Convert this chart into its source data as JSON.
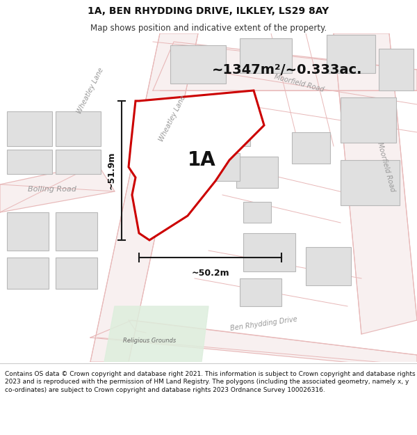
{
  "title": "1A, BEN RHYDDING DRIVE, ILKLEY, LS29 8AY",
  "subtitle": "Map shows position and indicative extent of the property.",
  "area_label": "~1347m²/~0.333ac.",
  "property_label": "1A",
  "dim_horiz": "~50.2m",
  "dim_vert": "~51.9m",
  "footer": "Contains OS data © Crown copyright and database right 2021. This information is subject to Crown copyright and database rights 2023 and is reproduced with the permission of HM Land Registry. The polygons (including the associated geometry, namely x, y co-ordinates) are subject to Crown copyright and database rights 2023 Ordnance Survey 100026316.",
  "bg_color": "#ffffff",
  "map_bg": "#ffffff",
  "road_fill": "#f5f0f0",
  "road_line": "#e8b8b8",
  "road_line2": "#d4a0a0",
  "building_color": "#e0e0e0",
  "building_edge": "#b8b8b8",
  "green_color": "#ddeedd",
  "property_fill": "#ffffff",
  "property_edge": "#cc0000",
  "dim_line_color": "#1a1a1a",
  "road_label_color": "#999999",
  "figsize": [
    6.0,
    6.25
  ],
  "dpi": 100,
  "title_fontsize": 10,
  "subtitle_fontsize": 8.5,
  "footer_fontsize": 6.5,
  "area_fontsize": 14,
  "label_fontsize": 20,
  "dim_fontsize": 9
}
